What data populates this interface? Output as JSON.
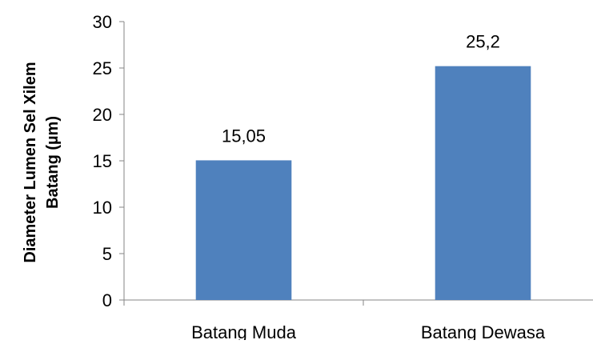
{
  "chart_data": {
    "type": "bar",
    "categories": [
      "Batang Muda",
      "Batang Dewasa"
    ],
    "values": [
      15.05,
      25.2
    ],
    "data_labels": [
      "15,05",
      "25,2"
    ],
    "title": "",
    "xlabel": "",
    "ylabel_lines": [
      "Diameter Lumen Sel Xilem",
      "Batang (µm)"
    ],
    "ylim": [
      0,
      30
    ],
    "yticks": [
      0,
      5,
      10,
      15,
      20,
      25,
      30
    ],
    "grid": false,
    "legend": "none",
    "bar_color": "#4f81bd",
    "axis_color": "#868686"
  }
}
